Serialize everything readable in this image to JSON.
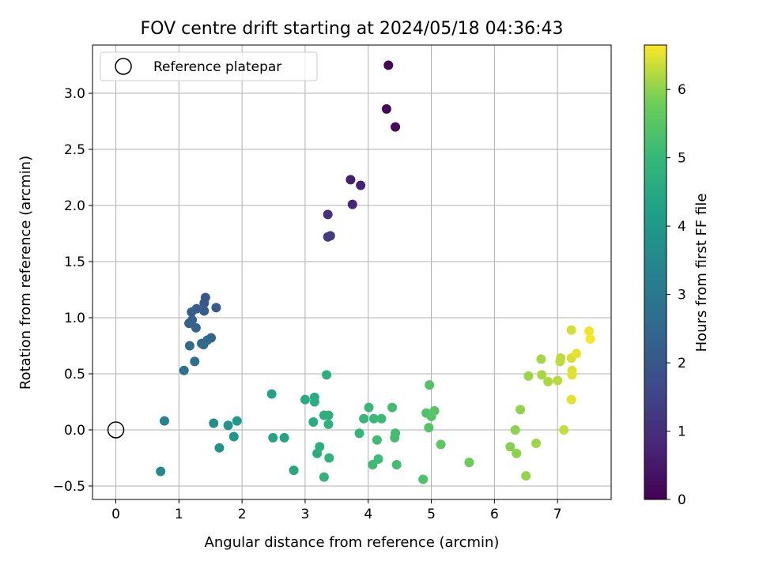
{
  "chart_data": {
    "type": "scatter",
    "title": "FOV centre drift starting at 2024/05/18 04:36:43",
    "xlabel": "Angular distance from reference (arcmin)",
    "ylabel": "Rotation from reference (arcmin)",
    "xlim": [
      -0.37,
      7.85
    ],
    "ylim": [
      -0.62,
      3.43
    ],
    "xticks": [
      0,
      1,
      2,
      3,
      4,
      5,
      6,
      7
    ],
    "yticks": [
      -0.5,
      0.0,
      0.5,
      1.0,
      1.5,
      2.0,
      2.5,
      3.0
    ],
    "xtick_labels": [
      "0",
      "1",
      "2",
      "3",
      "4",
      "5",
      "6",
      "7"
    ],
    "ytick_labels": [
      "−0.5",
      "0.0",
      "0.5",
      "1.0",
      "1.5",
      "2.0",
      "2.5",
      "3.0"
    ],
    "grid": true,
    "legend": {
      "placement": "upper-left",
      "entries": [
        {
          "label": "Reference platepar",
          "marker": "open-circle",
          "x": 0,
          "y": 0
        }
      ]
    },
    "colorbar": {
      "label": "Hours from first FF file",
      "colormap": "viridis",
      "range": [
        0,
        6.65
      ],
      "ticks": [
        0,
        1,
        2,
        3,
        4,
        5,
        6
      ],
      "tick_labels": [
        "0",
        "1",
        "2",
        "3",
        "4",
        "5",
        "6"
      ]
    },
    "points": [
      [
        4.32,
        3.25,
        0.05
      ],
      [
        4.29,
        2.86,
        0.1
      ],
      [
        4.43,
        2.7,
        0.15
      ],
      [
        3.72,
        2.23,
        0.65
      ],
      [
        3.88,
        2.18,
        0.7
      ],
      [
        3.75,
        2.01,
        0.75
      ],
      [
        3.36,
        1.92,
        1.05
      ],
      [
        3.36,
        1.72,
        1.25
      ],
      [
        3.4,
        1.73,
        1.3
      ],
      [
        1.42,
        1.18,
        2.0
      ],
      [
        1.4,
        1.13,
        2.05
      ],
      [
        1.59,
        1.09,
        2.1
      ],
      [
        1.28,
        1.08,
        2.15
      ],
      [
        1.4,
        1.06,
        2.2
      ],
      [
        1.2,
        1.05,
        2.25
      ],
      [
        1.21,
        0.98,
        2.3
      ],
      [
        1.16,
        0.95,
        2.35
      ],
      [
        1.27,
        0.91,
        2.4
      ],
      [
        1.51,
        0.82,
        2.45
      ],
      [
        1.45,
        0.8,
        2.5
      ],
      [
        1.36,
        0.77,
        2.55
      ],
      [
        1.39,
        0.76,
        2.6
      ],
      [
        1.17,
        0.75,
        2.65
      ],
      [
        1.25,
        0.61,
        2.7
      ],
      [
        1.08,
        0.53,
        2.75
      ],
      [
        0.77,
        0.08,
        3.35
      ],
      [
        0.71,
        -0.37,
        3.55
      ],
      [
        1.55,
        0.06,
        3.7
      ],
      [
        1.64,
        -0.16,
        3.8
      ],
      [
        1.78,
        0.04,
        3.9
      ],
      [
        1.87,
        -0.06,
        3.95
      ],
      [
        1.92,
        0.08,
        4.0
      ],
      [
        2.47,
        0.32,
        4.3
      ],
      [
        2.49,
        -0.07,
        4.35
      ],
      [
        2.67,
        -0.07,
        4.4
      ],
      [
        2.82,
        -0.36,
        4.5
      ],
      [
        3.0,
        0.27,
        4.55
      ],
      [
        3.13,
        0.07,
        4.6
      ],
      [
        3.15,
        0.29,
        4.62
      ],
      [
        3.15,
        0.25,
        4.64
      ],
      [
        3.19,
        -0.21,
        4.66
      ],
      [
        3.23,
        -0.15,
        4.68
      ],
      [
        3.3,
        0.13,
        4.7
      ],
      [
        3.34,
        0.49,
        4.72
      ],
      [
        3.37,
        0.13,
        4.74
      ],
      [
        3.37,
        0.05,
        4.76
      ],
      [
        3.3,
        -0.42,
        4.78
      ],
      [
        3.38,
        -0.25,
        4.8
      ],
      [
        3.86,
        -0.03,
        4.95
      ],
      [
        3.93,
        0.1,
        5.0
      ],
      [
        4.01,
        0.2,
        5.02
      ],
      [
        4.09,
        0.1,
        5.05
      ],
      [
        4.21,
        0.1,
        5.08
      ],
      [
        4.07,
        -0.31,
        5.1
      ],
      [
        4.16,
        -0.26,
        5.12
      ],
      [
        4.14,
        -0.09,
        5.14
      ],
      [
        4.38,
        0.2,
        5.16
      ],
      [
        4.43,
        -0.03,
        5.18
      ],
      [
        4.42,
        -0.07,
        5.2
      ],
      [
        4.45,
        -0.31,
        5.22
      ],
      [
        4.87,
        -0.44,
        5.35
      ],
      [
        4.92,
        0.15,
        5.4
      ],
      [
        4.97,
        0.4,
        5.42
      ],
      [
        4.96,
        0.02,
        5.44
      ],
      [
        5.0,
        0.12,
        5.46
      ],
      [
        5.05,
        0.17,
        5.48
      ],
      [
        5.15,
        -0.13,
        5.55
      ],
      [
        5.6,
        -0.29,
        5.75
      ],
      [
        6.25,
        -0.15,
        5.95
      ],
      [
        6.33,
        0.0,
        5.98
      ],
      [
        6.35,
        -0.21,
        6.0
      ],
      [
        6.41,
        0.18,
        6.02
      ],
      [
        6.5,
        -0.41,
        6.05
      ],
      [
        6.54,
        0.48,
        6.08
      ],
      [
        6.66,
        -0.12,
        6.1
      ],
      [
        6.74,
        0.63,
        6.13
      ],
      [
        6.75,
        0.49,
        6.15
      ],
      [
        6.85,
        0.43,
        6.18
      ],
      [
        7.0,
        0.44,
        6.25
      ],
      [
        7.04,
        0.61,
        6.28
      ],
      [
        7.05,
        0.64,
        6.3
      ],
      [
        7.1,
        0.0,
        6.32
      ],
      [
        7.22,
        0.89,
        6.4
      ],
      [
        7.22,
        0.64,
        6.42
      ],
      [
        7.23,
        0.53,
        6.45
      ],
      [
        7.23,
        0.49,
        6.48
      ],
      [
        7.22,
        0.27,
        6.5
      ],
      [
        7.3,
        0.68,
        6.52
      ],
      [
        7.5,
        0.88,
        6.58
      ],
      [
        7.52,
        0.81,
        6.62
      ]
    ]
  }
}
